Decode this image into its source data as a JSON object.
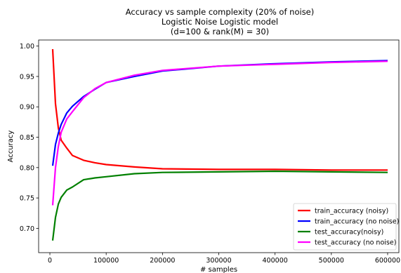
{
  "chart_data": {
    "type": "line",
    "title_lines": [
      "Accuracy vs sample complexity (20% of noise)",
      "Logistic Noise Logistic model",
      "(d=100 & rank(M) = 30)"
    ],
    "xlabel": "# samples",
    "ylabel": "Accuracy",
    "xlim": [
      -20000,
      620000
    ],
    "ylim": [
      0.66,
      1.01
    ],
    "xticks": [
      0,
      100000,
      200000,
      300000,
      400000,
      500000,
      600000
    ],
    "yticks": [
      0.7,
      0.75,
      0.8,
      0.85,
      0.9,
      0.95,
      1.0
    ],
    "grid": false,
    "legend_position": "bottom-right",
    "series": [
      {
        "name": "train_accuracy (noisy)",
        "color": "#ff0000",
        "x": [
          5000,
          10000,
          15000,
          20000,
          30000,
          40000,
          60000,
          80000,
          100000,
          150000,
          200000,
          300000,
          400000,
          500000,
          600000
        ],
        "y": [
          0.995,
          0.905,
          0.865,
          0.845,
          0.832,
          0.82,
          0.812,
          0.808,
          0.805,
          0.801,
          0.798,
          0.797,
          0.797,
          0.796,
          0.796
        ]
      },
      {
        "name": "train_accuracy (no noise)",
        "color": "#0000ff",
        "x": [
          5000,
          10000,
          15000,
          20000,
          30000,
          40000,
          60000,
          80000,
          100000,
          150000,
          200000,
          300000,
          400000,
          500000,
          600000
        ],
        "y": [
          0.803,
          0.838,
          0.857,
          0.871,
          0.89,
          0.901,
          0.917,
          0.929,
          0.94,
          0.95,
          0.959,
          0.967,
          0.971,
          0.974,
          0.976
        ]
      },
      {
        "name": "test_accuracy(noisy)",
        "color": "#008000",
        "x": [
          5000,
          10000,
          15000,
          20000,
          30000,
          40000,
          60000,
          80000,
          100000,
          150000,
          200000,
          300000,
          400000,
          500000,
          600000
        ],
        "y": [
          0.68,
          0.718,
          0.74,
          0.751,
          0.763,
          0.768,
          0.78,
          0.783,
          0.785,
          0.79,
          0.792,
          0.793,
          0.794,
          0.793,
          0.792
        ]
      },
      {
        "name": "test_accuracy (no noise)",
        "color": "#ff00ff",
        "x": [
          5000,
          10000,
          15000,
          20000,
          30000,
          40000,
          60000,
          80000,
          100000,
          150000,
          200000,
          300000,
          400000,
          500000,
          600000
        ],
        "y": [
          0.738,
          0.8,
          0.835,
          0.858,
          0.88,
          0.892,
          0.915,
          0.93,
          0.94,
          0.952,
          0.96,
          0.967,
          0.97,
          0.973,
          0.975
        ]
      }
    ]
  }
}
